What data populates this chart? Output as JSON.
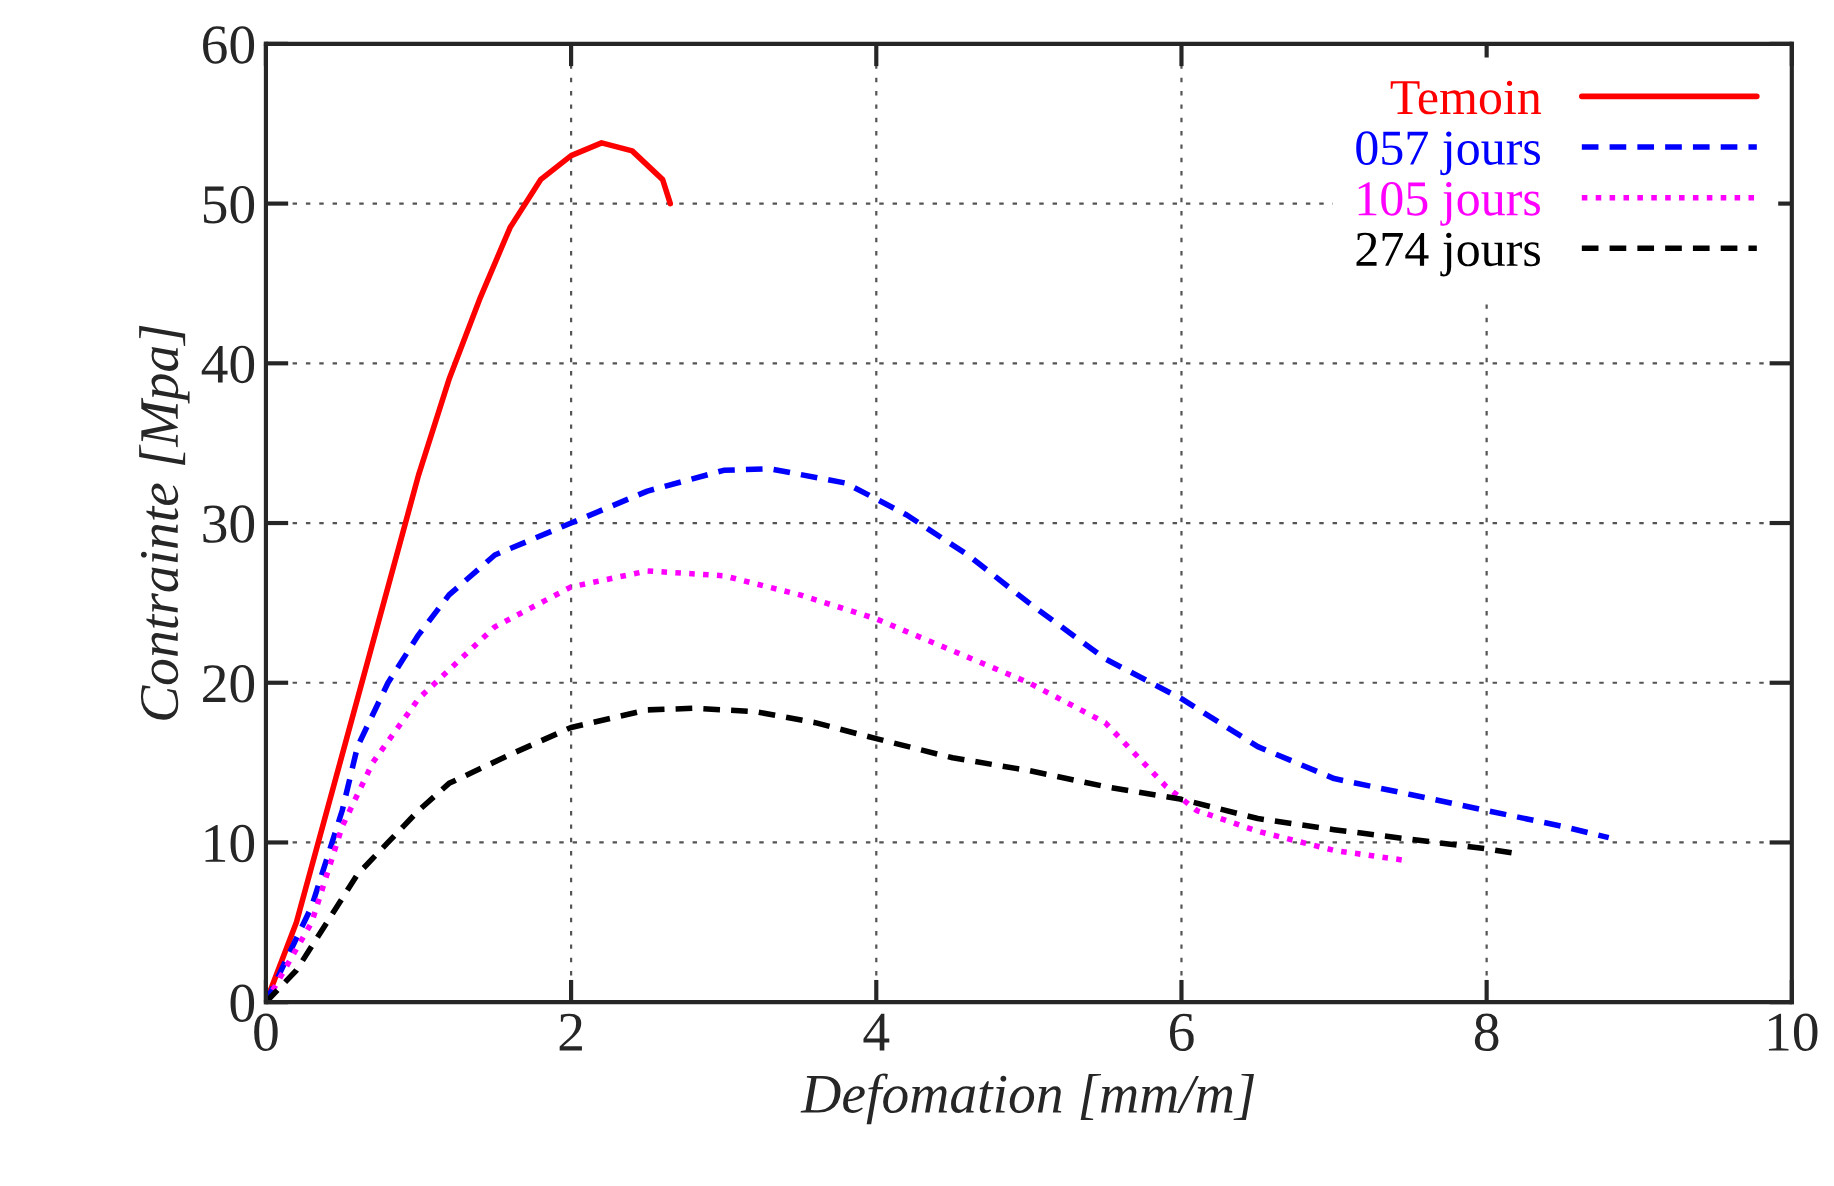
{
  "chart_data": {
    "type": "line",
    "xlabel": "Defomation [mm/m]",
    "ylabel": "Contrainte [Mpa]",
    "xlim": [
      0,
      10
    ],
    "ylim": [
      0,
      60
    ],
    "xticks": [
      0,
      2,
      4,
      6,
      8,
      10
    ],
    "yticks": [
      0,
      10,
      20,
      30,
      40,
      50,
      60
    ],
    "grid": true,
    "legend": "top right",
    "series": [
      {
        "name": "Temoin",
        "color": "#ff0000",
        "line_style": "solid",
        "x": [
          0,
          0.2,
          0.4,
          0.6,
          0.8,
          1.0,
          1.2,
          1.4,
          1.6,
          1.8,
          2.0,
          2.2,
          2.4,
          2.6,
          2.65
        ],
        "values": [
          0,
          5,
          12,
          19,
          26,
          33,
          39,
          44,
          48.5,
          51.5,
          53,
          53.8,
          53.3,
          51.5,
          50
        ]
      },
      {
        "name": "057 jours",
        "color": "#0000ff",
        "line_style": "dashed",
        "x": [
          0,
          0.3,
          0.5,
          0.6,
          0.8,
          1.0,
          1.2,
          1.5,
          2.0,
          2.5,
          3.0,
          3.3,
          3.8,
          4.2,
          4.6,
          5.0,
          5.5,
          6.0,
          6.5,
          7.0,
          7.5,
          8.0,
          8.5,
          8.8
        ],
        "values": [
          0,
          6,
          12,
          16,
          20,
          23,
          25.5,
          28,
          30,
          32,
          33.3,
          33.4,
          32.5,
          30.5,
          28,
          25,
          21.5,
          19,
          16,
          14,
          13,
          12,
          11,
          10.3
        ]
      },
      {
        "name": "105 jours",
        "color": "#ff00ff",
        "line_style": "dotted",
        "x": [
          0,
          0.3,
          0.5,
          0.7,
          1.0,
          1.5,
          2.0,
          2.5,
          3.0,
          3.5,
          4.0,
          4.5,
          5.0,
          5.5,
          5.9,
          6.1,
          6.5,
          7.0,
          7.45
        ],
        "values": [
          0,
          5,
          11,
          15,
          19,
          23.5,
          26,
          27,
          26.7,
          25.5,
          24,
          22,
          20,
          17.5,
          13.5,
          12,
          10.7,
          9.5,
          8.9
        ]
      },
      {
        "name": "274 jours",
        "color": "#000000",
        "line_style": "dashed",
        "x": [
          0,
          0.2,
          0.4,
          0.6,
          0.8,
          1.0,
          1.2,
          1.6,
          2.0,
          2.5,
          2.8,
          3.2,
          3.6,
          4.0,
          4.5,
          5.0,
          5.5,
          6.0,
          6.5,
          7.0,
          7.5,
          8.0,
          8.2
        ],
        "values": [
          0,
          2,
          5,
          8,
          10,
          12,
          13.7,
          15.5,
          17.2,
          18.3,
          18.4,
          18.2,
          17.5,
          16.5,
          15.3,
          14.5,
          13.5,
          12.7,
          11.5,
          10.8,
          10.2,
          9.6,
          9.3
        ]
      }
    ]
  }
}
